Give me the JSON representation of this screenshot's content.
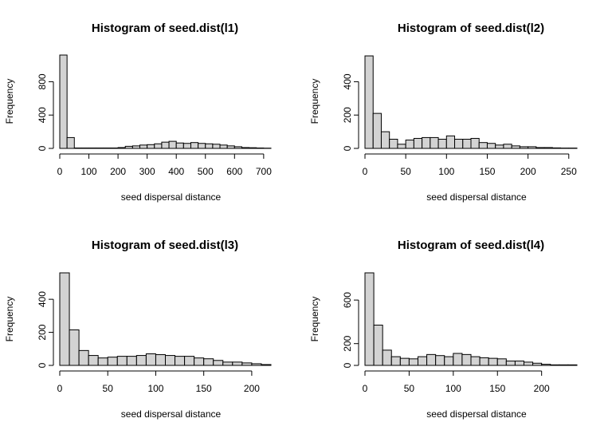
{
  "chart_data": [
    {
      "type": "bar",
      "title": "Histogram of seed.dist(l1)",
      "xlabel": "seed dispersal distance",
      "ylabel": "Frequency",
      "bin_width": 25,
      "bin_start": 0,
      "values": [
        1120,
        130,
        5,
        5,
        5,
        5,
        5,
        5,
        10,
        25,
        30,
        40,
        45,
        55,
        75,
        85,
        65,
        60,
        70,
        60,
        55,
        50,
        40,
        30,
        20,
        10,
        8,
        5,
        3
      ],
      "xlim": [
        0,
        725
      ],
      "ylim": [
        0,
        1120
      ],
      "xticks": [
        0,
        100,
        200,
        300,
        400,
        500,
        600,
        700
      ],
      "yticks": [
        0,
        400,
        800
      ]
    },
    {
      "type": "bar",
      "title": "Histogram of seed.dist(l2)",
      "xlabel": "seed dispersal distance",
      "ylabel": "Frequency",
      "bin_width": 10,
      "bin_start": 0,
      "values": [
        555,
        210,
        100,
        55,
        25,
        50,
        60,
        65,
        65,
        55,
        75,
        55,
        55,
        60,
        35,
        30,
        20,
        25,
        15,
        10,
        10,
        5,
        5,
        3,
        2,
        2
      ],
      "xlim": [
        0,
        260
      ],
      "ylim": [
        0,
        560
      ],
      "xticks": [
        0,
        50,
        100,
        150,
        200,
        250
      ],
      "yticks": [
        0,
        200,
        400
      ]
    },
    {
      "type": "bar",
      "title": "Histogram of seed.dist(l3)",
      "xlabel": "seed dispersal distance",
      "ylabel": "Frequency",
      "bin_width": 10,
      "bin_start": 0,
      "values": [
        560,
        215,
        90,
        60,
        45,
        50,
        55,
        55,
        60,
        70,
        65,
        60,
        55,
        55,
        45,
        40,
        30,
        20,
        20,
        15,
        10,
        5
      ],
      "xlim": [
        0,
        220
      ],
      "ylim": [
        0,
        560
      ],
      "xticks": [
        0,
        50,
        100,
        150,
        200
      ],
      "yticks": [
        0,
        200,
        400
      ]
    },
    {
      "type": "bar",
      "title": "Histogram of seed.dist(l4)",
      "xlabel": "seed dispersal distance",
      "ylabel": "Frequency",
      "bin_width": 10,
      "bin_start": 0,
      "values": [
        850,
        370,
        140,
        80,
        65,
        60,
        80,
        100,
        90,
        80,
        110,
        100,
        80,
        70,
        65,
        60,
        40,
        40,
        30,
        20,
        10,
        5,
        5,
        5
      ],
      "xlim": [
        0,
        240
      ],
      "ylim": [
        0,
        850
      ],
      "xticks": [
        0,
        50,
        100,
        150,
        200
      ],
      "yticks": [
        0,
        200,
        600
      ]
    }
  ]
}
